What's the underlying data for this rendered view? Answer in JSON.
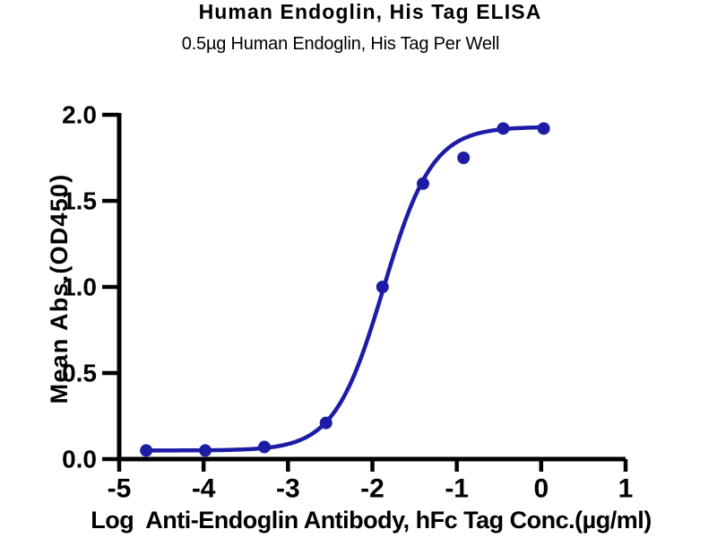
{
  "chart_data": {
    "type": "scatter",
    "title": "Human Endoglin, His Tag ELISA",
    "subtitle": "0.5µg Human Endoglin, His Tag Per Well",
    "xlabel": "Log  Anti-Endoglin Antibody, hFc Tag Conc.(µg/ml)",
    "ylabel": "Mean Abs.(OD450)",
    "xlim": [
      -5,
      1
    ],
    "ylim": [
      0,
      2
    ],
    "x_ticks": [
      -5,
      -4,
      -3,
      -2,
      -1,
      0,
      1
    ],
    "x_tick_labels": [
      "-5",
      "-4",
      "-3",
      "-2",
      "-1",
      "0",
      "1"
    ],
    "y_ticks": [
      0,
      0.5,
      1,
      1.5,
      2
    ],
    "y_tick_labels": [
      "0.0",
      "0.5",
      "1.0",
      "1.5",
      "2.0"
    ],
    "grid": false,
    "legend": false,
    "series": [
      {
        "name": "Anti-Endoglin Antibody, hFc Tag",
        "x": [
          -4.68,
          -3.98,
          -3.28,
          -2.55,
          -1.88,
          -1.4,
          -0.92,
          -0.45,
          0.03
        ],
        "y": [
          0.05,
          0.05,
          0.07,
          0.21,
          1.0,
          1.6,
          1.75,
          1.92,
          1.92
        ]
      }
    ],
    "fit_curve": {
      "model": "4PL sigmoid",
      "bottom": 0.05,
      "top": 1.93,
      "logEC50": -1.87,
      "hill": 1.5,
      "x_start": -4.68,
      "x_end": 0.03
    },
    "marker_color": "#1c1ca6",
    "line_color": "#1c1ca6",
    "axis_color": "#000000",
    "background_color": "#ffffff"
  }
}
